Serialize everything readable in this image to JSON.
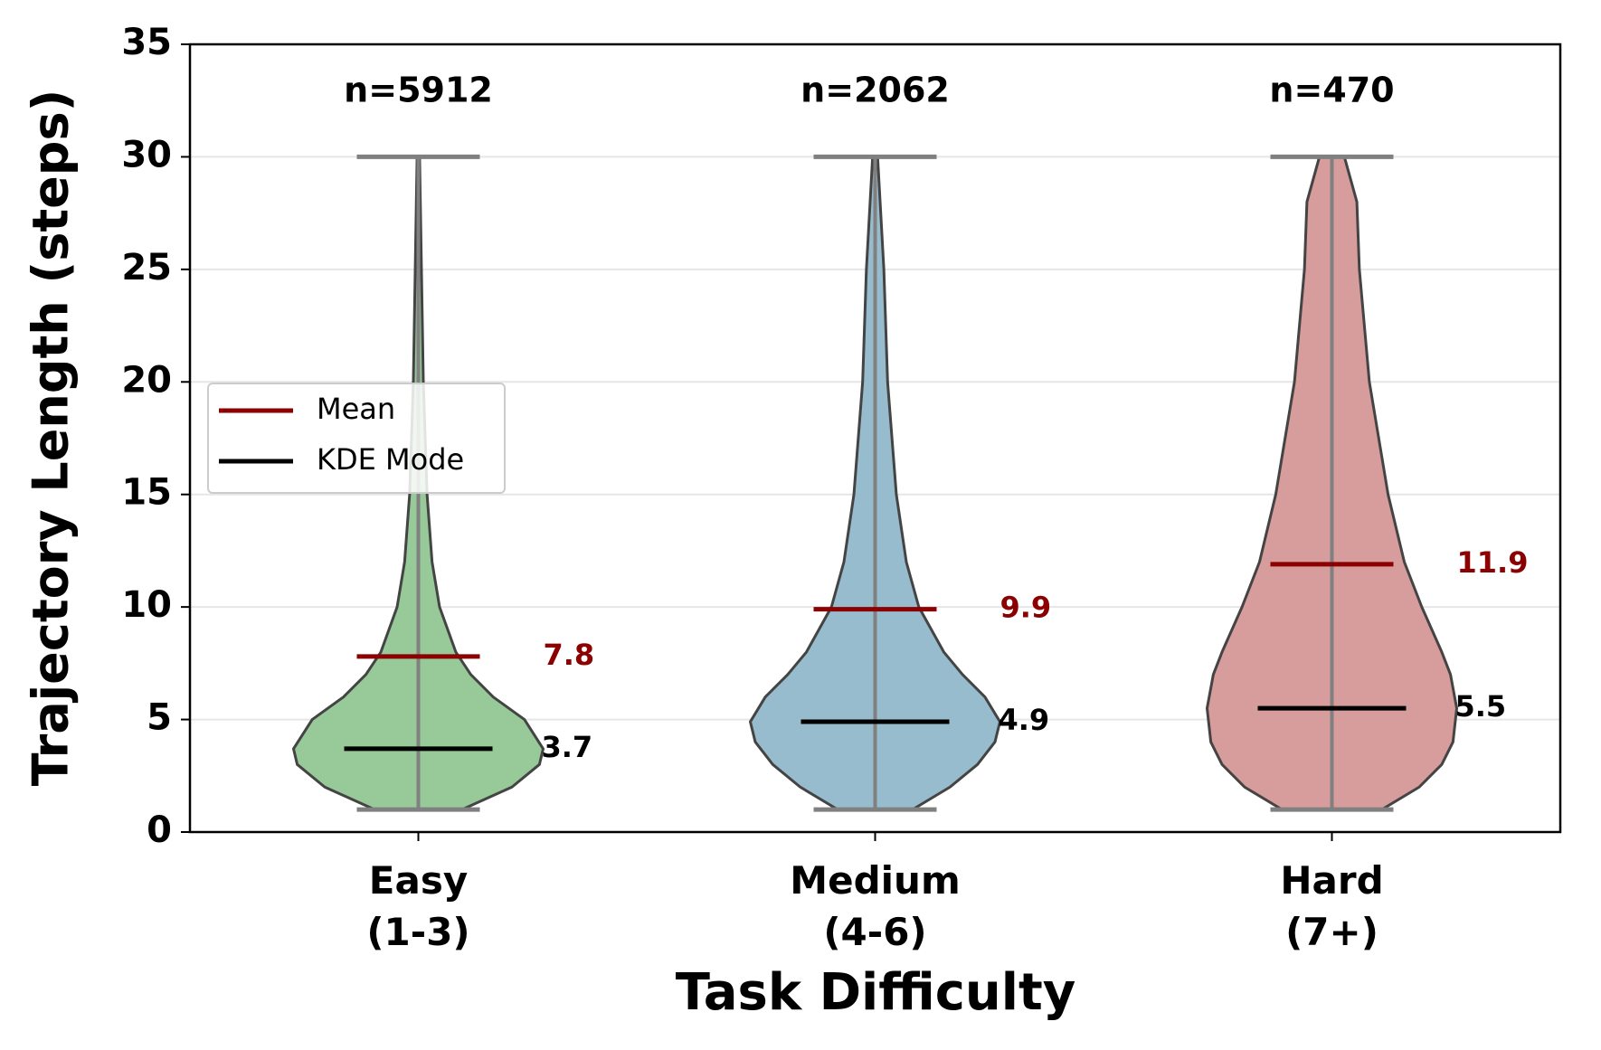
{
  "chart_data": {
    "type": "violin",
    "ylabel": "Trajectory Length (steps)",
    "xlabel": "Task Difficulty",
    "categories": [
      "Easy\n(1-3)",
      "Medium\n(4-6)",
      "Hard\n(7+)"
    ],
    "colors": [
      "#97c999",
      "#97bccd",
      "#d69d9c"
    ],
    "n": [
      5912,
      2062,
      470
    ],
    "n_labels": [
      "n=5912",
      "n=2062",
      "n=470"
    ],
    "min": [
      1,
      1,
      1
    ],
    "max": [
      30,
      30,
      30
    ],
    "kde_y": [
      [
        1,
        2,
        3,
        3.7,
        5,
        6,
        7,
        8,
        10,
        12,
        15,
        20,
        25,
        30
      ],
      [
        1,
        2,
        3,
        4,
        4.9,
        6,
        7,
        8,
        10,
        12,
        15,
        20,
        25,
        30
      ],
      [
        1,
        2,
        3,
        4,
        5.5,
        7,
        8,
        10,
        12,
        15,
        20,
        25,
        28,
        30
      ]
    ],
    "kde": [
      [
        0.35,
        0.75,
        0.97,
        1,
        0.85,
        0.6,
        0.42,
        0.3,
        0.17,
        0.11,
        0.07,
        0.04,
        0.025,
        0.01
      ],
      [
        0.3,
        0.6,
        0.82,
        0.96,
        1,
        0.88,
        0.7,
        0.55,
        0.35,
        0.25,
        0.17,
        0.1,
        0.07,
        0.02
      ],
      [
        0.4,
        0.7,
        0.88,
        0.97,
        1,
        0.95,
        0.88,
        0.72,
        0.58,
        0.45,
        0.3,
        0.22,
        0.2,
        0.1
      ]
    ],
    "stats": [
      {
        "name": "Mean",
        "color": "#8b0000",
        "values": [
          7.8,
          9.9,
          11.9
        ]
      },
      {
        "name": "KDE Mode",
        "color": "#000000",
        "values": [
          3.7,
          4.9,
          5.5
        ]
      }
    ],
    "ylim": [
      0,
      35
    ],
    "yticks": [
      0,
      5,
      10,
      15,
      20,
      25,
      30,
      35
    ],
    "grid": true,
    "legend": "left"
  }
}
